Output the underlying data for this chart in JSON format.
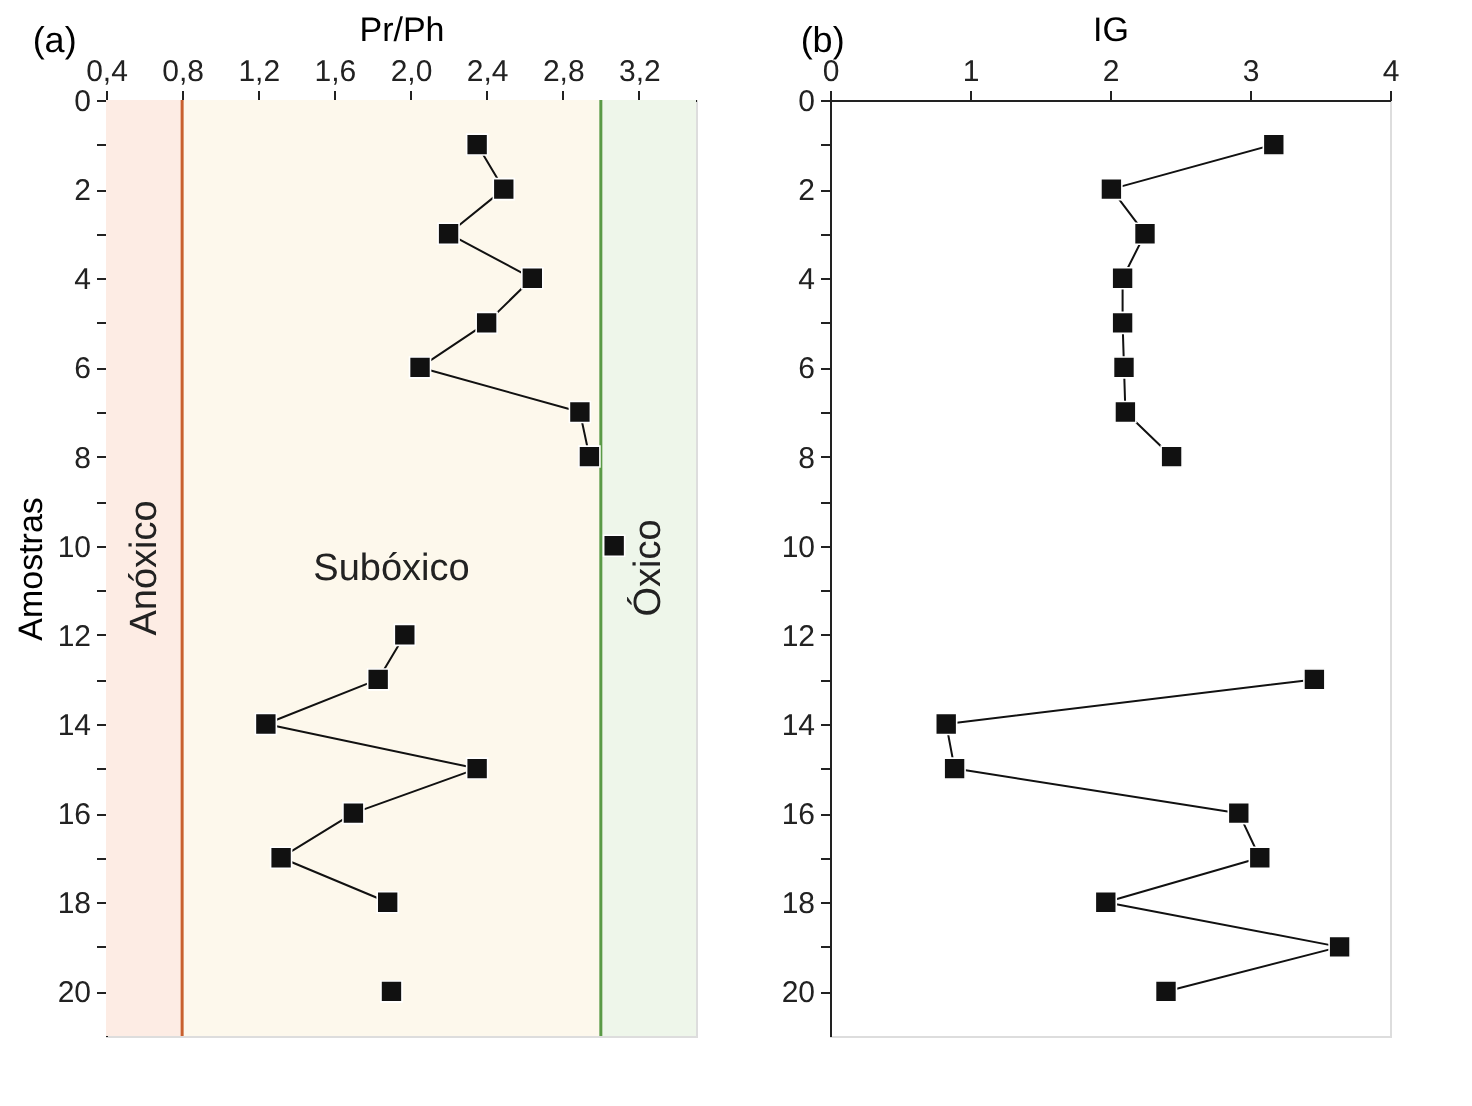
{
  "chart_data": [
    {
      "type": "line",
      "orientation": "horizontal",
      "title": "(a)",
      "xlabel": "Pr/Ph",
      "ylabel": "Amostras",
      "x": [
        1,
        2,
        3,
        4,
        5,
        6,
        7,
        8,
        9,
        10,
        11,
        12,
        13,
        14,
        15,
        16,
        17,
        18,
        19,
        20
      ],
      "series": [
        {
          "color": "#111111",
          "values": [
            2.35,
            2.49,
            2.2,
            2.64,
            2.4,
            2.05,
            2.89,
            2.94,
            null,
            3.07,
            null,
            1.97,
            1.83,
            1.24,
            2.35,
            1.7,
            1.32,
            1.88,
            null,
            1.9
          ]
        }
      ],
      "marker": "square",
      "line_style": "solid",
      "grid": false,
      "xlim": [
        0.4,
        3.5
      ],
      "xticks": [
        {
          "value": 0.4,
          "label": "0,4"
        },
        {
          "value": 0.8,
          "label": "0,8"
        },
        {
          "value": 1.2,
          "label": "1,2"
        },
        {
          "value": 1.6,
          "label": "1,6"
        },
        {
          "value": 2.0,
          "label": "2,0"
        },
        {
          "value": 2.4,
          "label": "2,4"
        },
        {
          "value": 2.8,
          "label": "2,8"
        },
        {
          "value": 3.2,
          "label": "3,2"
        }
      ],
      "ylim": [
        21,
        0
      ],
      "yticks": [
        0,
        {
          "value": 1,
          "label": null
        },
        2,
        {
          "value": 3,
          "label": null
        },
        4,
        {
          "value": 5,
          "label": null
        },
        6,
        {
          "value": 7,
          "label": null
        },
        8,
        {
          "value": 9,
          "label": null
        },
        10,
        {
          "value": 11,
          "label": null
        },
        12,
        {
          "value": 13,
          "label": null
        },
        14,
        {
          "value": 15,
          "label": null
        },
        16,
        {
          "value": 17,
          "label": null
        },
        18,
        {
          "value": 19,
          "label": null
        },
        20
      ],
      "bands": [
        {
          "axis": "x",
          "from": 0.4,
          "to": 0.8,
          "label": "Anóxico",
          "color": "#fdece4"
        },
        {
          "axis": "x",
          "from": 0.8,
          "to": 3.0,
          "label": "Subóxico",
          "color": "#fdf8ec"
        },
        {
          "axis": "x",
          "from": 3.0,
          "to": 3.5,
          "label": "Óxico",
          "color": "#eef6ea"
        }
      ],
      "ref_lines": [
        {
          "axis": "x",
          "value": 0.8,
          "color": "#c8602e",
          "line_style": "solid"
        },
        {
          "axis": "x",
          "value": 3.0,
          "color": "#5a9a46",
          "line_style": "solid"
        }
      ]
    },
    {
      "type": "line",
      "orientation": "horizontal",
      "title": "(b)",
      "xlabel": "IG",
      "x": [
        1,
        2,
        3,
        4,
        5,
        6,
        7,
        8,
        9,
        10,
        11,
        12,
        13,
        14,
        15,
        16,
        17,
        18,
        19,
        20
      ],
      "series": [
        {
          "color": "#111111",
          "values": [
            3.17,
            2.01,
            2.25,
            2.09,
            2.09,
            2.1,
            2.11,
            2.44,
            null,
            null,
            null,
            null,
            3.46,
            0.83,
            0.89,
            2.92,
            3.07,
            1.97,
            3.64,
            2.4
          ]
        }
      ],
      "marker": "square",
      "line_style": "solid",
      "grid": false,
      "xlim": [
        0,
        4
      ],
      "xticks": [
        0,
        1,
        2,
        3,
        4
      ],
      "ylim": [
        21,
        0
      ],
      "yticks": [
        0,
        {
          "value": 1,
          "label": null
        },
        2,
        {
          "value": 3,
          "label": null
        },
        4,
        {
          "value": 5,
          "label": null
        },
        6,
        {
          "value": 7,
          "label": null
        },
        8,
        {
          "value": 9,
          "label": null
        },
        10,
        {
          "value": 11,
          "label": null
        },
        12,
        {
          "value": 13,
          "label": null
        },
        14,
        {
          "value": 15,
          "label": null
        },
        16,
        {
          "value": 17,
          "label": null
        },
        18,
        {
          "value": 19,
          "label": null
        },
        20
      ]
    }
  ]
}
